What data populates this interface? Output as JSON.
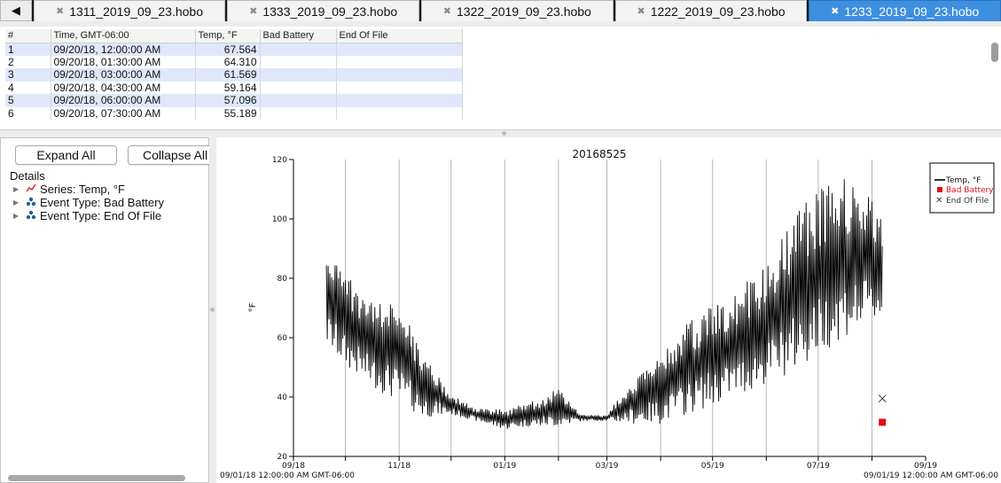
{
  "tabs": {
    "scroll_left": "◀",
    "items": [
      {
        "label": "1311_2019_09_23.hobo",
        "active": false
      },
      {
        "label": "1333_2019_09_23.hobo",
        "active": false
      },
      {
        "label": "1322_2019_09_23.hobo",
        "active": false
      },
      {
        "label": "1222_2019_09_23.hobo",
        "active": false
      },
      {
        "label": "1233_2019_09_23.hobo",
        "active": true
      }
    ]
  },
  "table": {
    "headers": [
      "#",
      "Time, GMT-06:00",
      "Temp, °F",
      "Bad Battery",
      "End Of File"
    ],
    "rows": [
      [
        "1",
        "09/20/18, 12:00:00 AM",
        "67.564",
        "",
        ""
      ],
      [
        "2",
        "09/20/18, 01:30:00 AM",
        "64.310",
        "",
        ""
      ],
      [
        "3",
        "09/20/18, 03:00:00 AM",
        "61.569",
        "",
        ""
      ],
      [
        "4",
        "09/20/18, 04:30:00 AM",
        "59.164",
        "",
        ""
      ],
      [
        "5",
        "09/20/18, 06:00:00 AM",
        "57.096",
        "",
        ""
      ],
      [
        "6",
        "09/20/18, 07:30:00 AM",
        "55.189",
        "",
        ""
      ]
    ]
  },
  "left_panel": {
    "expand_all": "Expand All",
    "collapse_all": "Collapse All",
    "details_label": "Details",
    "tree": [
      {
        "label": "Series: Temp, °F",
        "icon": "series-line-icon"
      },
      {
        "label": "Event Type: Bad Battery",
        "icon": "event-type-icon"
      },
      {
        "label": "Event Type: End Of File",
        "icon": "event-type-icon"
      }
    ]
  },
  "chart_data": {
    "type": "line",
    "title": "20168525",
    "ylabel": "°F",
    "ylim": [
      20,
      120
    ],
    "yticks": [
      "20",
      "40",
      "60",
      "80",
      "100",
      "120"
    ],
    "x_range": [
      "2018-09-01",
      "2019-09-01"
    ],
    "xticks": [
      "09/18",
      "11/18",
      "01/19",
      "03/19",
      "05/19",
      "07/19",
      "09/19"
    ],
    "x_start_label": "09/01/18 12:00:00 AM GMT-06:00",
    "x_end_label": "09/01/19 12:00:00 AM GMT-06:00",
    "grid": "vertical monthly lines",
    "legend": {
      "placement": "top-right",
      "entries": [
        {
          "label": "Temp, °F",
          "symbol": "line",
          "color": "#000000"
        },
        {
          "label": "Bad Battery",
          "symbol": "square",
          "color": "#e01010"
        },
        {
          "label": "End Of File",
          "symbol": "x",
          "color": "#333333"
        }
      ]
    },
    "series": [
      {
        "name": "Temp, °F",
        "color": "#000000",
        "envelope": [
          {
            "x": "2018-09-20",
            "min": 57,
            "max": 90
          },
          {
            "x": "2018-10-01",
            "min": 50,
            "max": 82
          },
          {
            "x": "2018-10-15",
            "min": 44,
            "max": 72
          },
          {
            "x": "2018-11-01",
            "min": 38,
            "max": 72
          },
          {
            "x": "2018-11-15",
            "min": 33,
            "max": 55
          },
          {
            "x": "2018-12-01",
            "min": 34,
            "max": 41
          },
          {
            "x": "2018-12-15",
            "min": 32,
            "max": 36
          },
          {
            "x": "2019-01-01",
            "min": 29,
            "max": 36
          },
          {
            "x": "2019-01-15",
            "min": 30,
            "max": 38
          },
          {
            "x": "2019-02-01",
            "min": 30,
            "max": 43
          },
          {
            "x": "2019-02-15",
            "min": 32,
            "max": 34
          },
          {
            "x": "2019-03-01",
            "min": 32,
            "max": 34
          },
          {
            "x": "2019-03-15",
            "min": 31,
            "max": 46
          },
          {
            "x": "2019-04-01",
            "min": 31,
            "max": 55
          },
          {
            "x": "2019-04-15",
            "min": 34,
            "max": 64
          },
          {
            "x": "2019-05-01",
            "min": 37,
            "max": 72
          },
          {
            "x": "2019-05-15",
            "min": 40,
            "max": 76
          },
          {
            "x": "2019-06-01",
            "min": 44,
            "max": 85
          },
          {
            "x": "2019-06-15",
            "min": 48,
            "max": 100
          },
          {
            "x": "2019-07-01",
            "min": 54,
            "max": 110
          },
          {
            "x": "2019-07-15",
            "min": 60,
            "max": 114
          },
          {
            "x": "2019-08-01",
            "min": 64,
            "max": 108
          },
          {
            "x": "2019-08-07",
            "min": 66,
            "max": 104
          }
        ]
      }
    ],
    "events": [
      {
        "type": "Bad Battery",
        "x": "2019-08-07",
        "y": 31.5
      },
      {
        "type": "End Of File",
        "x": "2019-08-07",
        "y": 39.5
      }
    ]
  }
}
